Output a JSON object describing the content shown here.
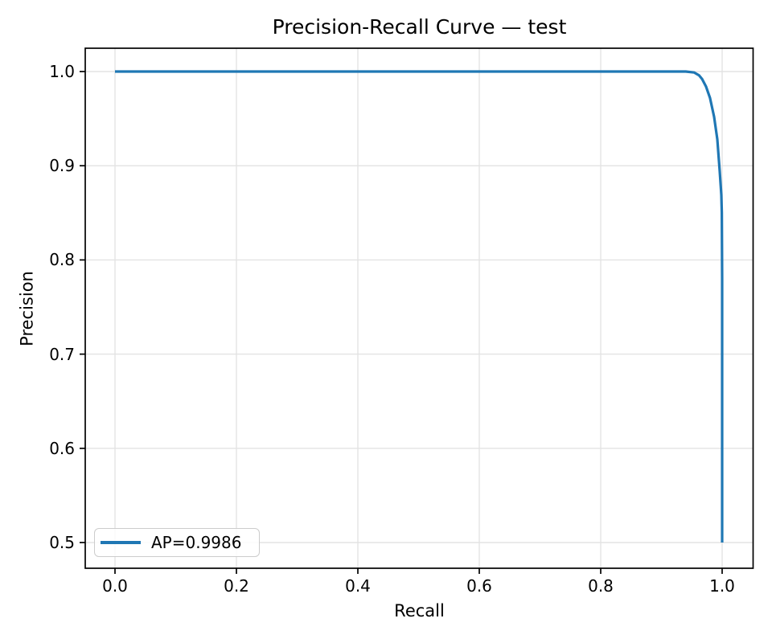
{
  "chart_data": {
    "type": "line",
    "title": "Precision-Recall Curve — test",
    "xlabel": "Recall",
    "ylabel": "Precision",
    "x_ticks": [
      "0.0",
      "0.2",
      "0.4",
      "0.6",
      "0.8",
      "1.0"
    ],
    "y_ticks": [
      "0.5",
      "0.6",
      "0.7",
      "0.8",
      "0.9",
      "1.0"
    ],
    "xlim": [
      -0.05,
      1.05
    ],
    "ylim": [
      0.473,
      1.025
    ],
    "grid": true,
    "legend_position": "lower left",
    "line_color": "#1f77b4",
    "series": [
      {
        "name": "AP=0.9986",
        "ap": 0.9986,
        "points": [
          [
            0.0,
            1.0
          ],
          [
            0.1,
            1.0
          ],
          [
            0.2,
            1.0
          ],
          [
            0.3,
            1.0
          ],
          [
            0.4,
            1.0
          ],
          [
            0.5,
            1.0
          ],
          [
            0.6,
            1.0
          ],
          [
            0.7,
            1.0
          ],
          [
            0.8,
            1.0
          ],
          [
            0.9,
            1.0
          ],
          [
            0.94,
            1.0
          ],
          [
            0.954,
            0.999
          ],
          [
            0.962,
            0.996
          ],
          [
            0.967,
            0.992
          ],
          [
            0.9735,
            0.984
          ],
          [
            0.98,
            0.972
          ],
          [
            0.9868,
            0.952
          ],
          [
            0.992,
            0.928
          ],
          [
            0.996,
            0.894
          ],
          [
            0.9987,
            0.869
          ],
          [
            0.9995,
            0.85
          ],
          [
            1.0,
            0.78
          ],
          [
            1.0,
            0.5
          ]
        ]
      }
    ]
  }
}
